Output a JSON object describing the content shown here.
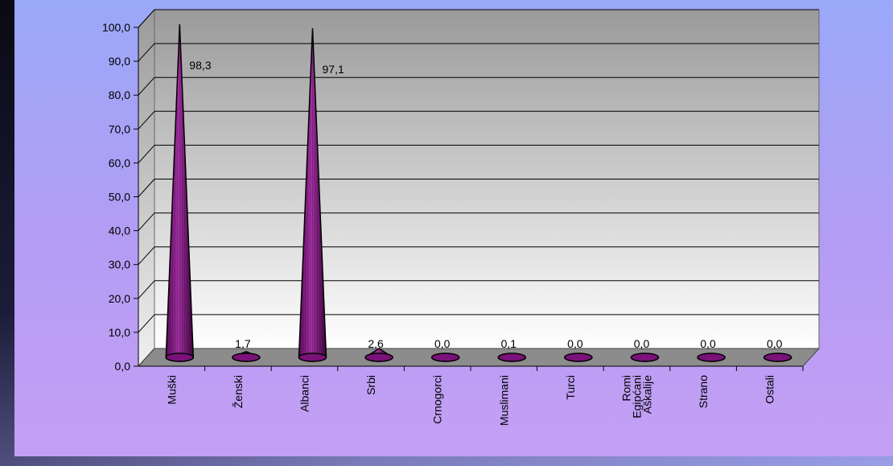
{
  "chart_data": {
    "type": "bar",
    "style": "3d-cone",
    "title": "",
    "xlabel": "",
    "ylabel": "",
    "categories": [
      "Muški",
      "Ženski",
      "Albanci",
      "Srbi",
      "Crnogorci",
      "Muslimani",
      "Turci",
      "Romi Egipćani Aškalije",
      "Strano",
      "Ostali"
    ],
    "category_lines": [
      [
        "Muški"
      ],
      [
        "Ženski"
      ],
      [
        "Albanci"
      ],
      [
        "Srbi"
      ],
      [
        "Crnogorci"
      ],
      [
        "Muslimani"
      ],
      [
        "Turci"
      ],
      [
        "Romi",
        "Egipćani",
        "Aškalije"
      ],
      [
        "Strano"
      ],
      [
        "Ostali"
      ]
    ],
    "values": [
      98.3,
      1.7,
      97.1,
      2.6,
      0.0,
      0.1,
      0.0,
      0.0,
      0.0,
      0.0
    ],
    "value_labels": [
      "98,3",
      "1,7",
      "97,1",
      "2,6",
      "0,0",
      "0,1",
      "0,0",
      "0,0",
      "0,0",
      "0,0"
    ],
    "ylim": [
      0,
      100
    ],
    "yticks": [
      "0,0",
      "10,0",
      "20,0",
      "30,0",
      "40,0",
      "50,0",
      "60,0",
      "70,0",
      "80,0",
      "90,0",
      "100,0"
    ],
    "grid": true,
    "legend": "none",
    "colors": {
      "cone": "#8a1a8a",
      "cone_dark": "#4a0a4a",
      "floor": "#8c8c8c",
      "wall_top": "#9a9a9a",
      "wall_bottom": "#ffffff"
    }
  }
}
